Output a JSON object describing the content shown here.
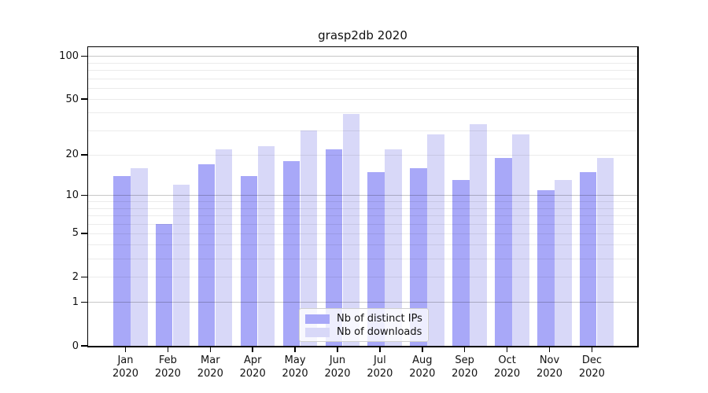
{
  "page": {
    "background": "#ffffff"
  },
  "chart_data": {
    "type": "bar",
    "title": "grasp2db 2020",
    "categories": [
      "Jan",
      "Feb",
      "Mar",
      "Apr",
      "May",
      "Jun",
      "Jul",
      "Aug",
      "Sep",
      "Oct",
      "Nov",
      "Dec"
    ],
    "category_year": "2020",
    "series": [
      {
        "name": "Nb of distinct IPs",
        "color": "#a8a8f8",
        "values": [
          14,
          6,
          17,
          14,
          18,
          22,
          15,
          16,
          13,
          19,
          11,
          15
        ]
      },
      {
        "name": "Nb of downloads",
        "color": "#d8d8f8",
        "values": [
          16,
          12,
          22,
          23,
          30,
          39,
          22,
          28,
          33,
          28,
          13,
          19
        ]
      }
    ],
    "xlabel": "",
    "ylabel": "",
    "yscale": "symlog",
    "ytick_labels": [
      0,
      1,
      2,
      5,
      10,
      20,
      50,
      100
    ],
    "major_gridlines": [
      1,
      10,
      100
    ],
    "minor_gridlines": [
      2,
      3,
      4,
      5,
      6,
      7,
      8,
      9,
      20,
      30,
      40,
      50,
      60,
      70,
      80,
      90
    ],
    "ylim": [
      0,
      116
    ],
    "grid": true,
    "legend_position": "lower-center",
    "colors": {
      "major_gridline": "rgba(0,0,0,0.22)",
      "minor_gridline": "rgba(0,0,0,0.08)",
      "axis": "#000000",
      "text": "#111111"
    }
  }
}
